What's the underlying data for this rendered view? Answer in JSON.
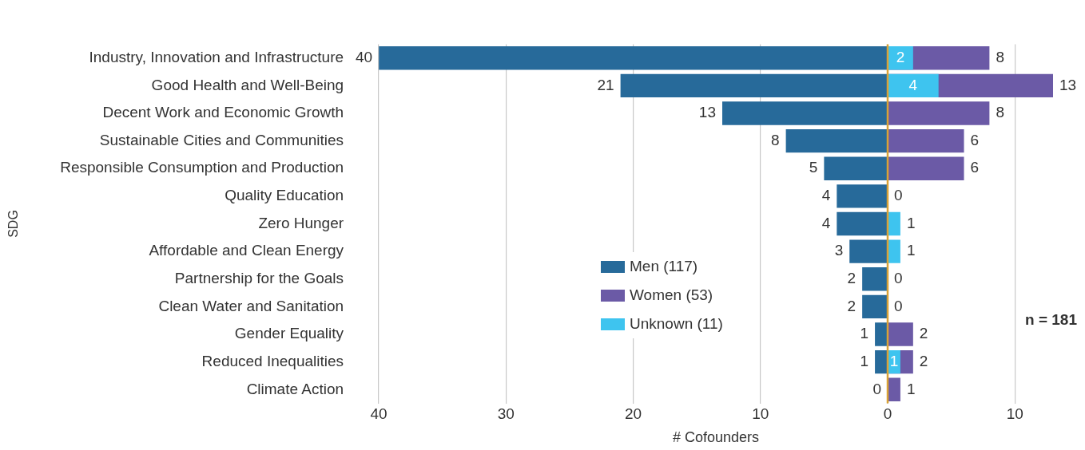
{
  "chart_data": {
    "type": "bar",
    "orientation": "horizontal",
    "xlabel": "# Cofounders",
    "ylabel": "SDG",
    "categories": [
      "Industry, Innovation and Infrastructure",
      "Good Health and Well-Being",
      "Decent Work and Economic Growth",
      "Sustainable Cities and Communities",
      "Responsible Consumption and Production",
      "Quality Education",
      "Zero Hunger",
      "Affordable and Clean Energy",
      "Partnership for the Goals",
      "Clean Water and Sanitation",
      "Gender Equality",
      "Reduced Inequalities",
      "Climate Action"
    ],
    "series": [
      {
        "name": "Men (117)",
        "color": "#276a9a",
        "values": [
          40,
          21,
          13,
          8,
          5,
          4,
          4,
          3,
          2,
          2,
          1,
          1,
          0
        ],
        "base": [
          -40,
          -21,
          -13,
          -8,
          -5,
          -4,
          -4,
          -3,
          -2,
          -2,
          -1,
          -1,
          null
        ],
        "value_labels": [
          "40",
          "21",
          "13",
          "8",
          "5",
          "4",
          "4",
          "3",
          "2",
          "2",
          "1",
          "1",
          "0"
        ]
      },
      {
        "name": "Women (53)",
        "color": "#6b5aa6",
        "values": [
          8,
          13,
          8,
          6,
          6,
          0,
          null,
          null,
          0,
          0,
          2,
          2,
          1
        ],
        "value_labels": [
          "8",
          "13",
          "8",
          "6",
          "6",
          "0",
          null,
          null,
          "0",
          "0",
          "2",
          "2",
          "1"
        ]
      },
      {
        "name": "Unknown (11)",
        "color": "#3ec4ef",
        "values": [
          2,
          4,
          null,
          null,
          null,
          null,
          1,
          1,
          null,
          null,
          null,
          1,
          null
        ],
        "value_labels": [
          "2",
          "4",
          null,
          null,
          null,
          null,
          "1",
          "1",
          null,
          null,
          null,
          "1",
          null
        ]
      }
    ],
    "xlim": [
      -40,
      13
    ],
    "xticks": [
      {
        "value": -40,
        "label": "40"
      },
      {
        "value": -30,
        "label": "30"
      },
      {
        "value": -20,
        "label": "20"
      },
      {
        "value": -10,
        "label": "10"
      },
      0,
      10
    ],
    "grid": "x",
    "legend": "bottom",
    "ref_lines": [
      {
        "axis": "x",
        "value": 0,
        "color": "#d9a237"
      }
    ],
    "annotations": [
      "n = 181"
    ]
  }
}
